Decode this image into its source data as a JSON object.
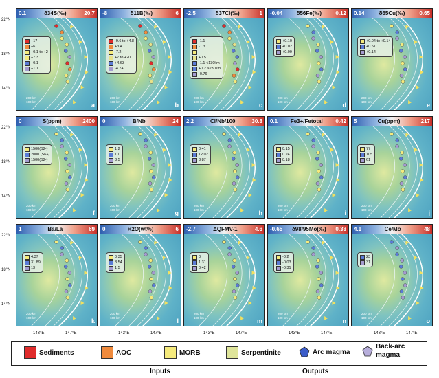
{
  "latitude_labels": [
    "22°N",
    "18°N",
    "14°N"
  ],
  "longitude_labels": [
    "143°E",
    "147°E"
  ],
  "panels": [
    {
      "title": "δ34S(‰)",
      "lo": "0.1",
      "hi": "20.7",
      "letter": "a",
      "legend": [
        "+17",
        "+6",
        "+0.1 to +2",
        "+7.3",
        "+0.1",
        "+1.1"
      ],
      "swatches": [
        "#e02b2b",
        "#f08a3c",
        "#f5ea7c",
        "#f5ea7c",
        "#5b7bd6",
        "#a49bd0"
      ],
      "extra": [
        "Trough",
        "Arc",
        "Back-arc",
        "Trough"
      ]
    },
    {
      "title": "δ11B(‰)",
      "lo": "-8",
      "hi": "6",
      "letter": "b",
      "legend": [
        "-9.6 to +4.8",
        "+3.4",
        "-7.2",
        "+7 to +20",
        "+4.63",
        "-4.74"
      ],
      "swatches": [
        "#e02b2b",
        "#f08a3c",
        "#f5ea7c",
        "#e8e28a",
        "#5b7bd6",
        "#a49bd0"
      ]
    },
    {
      "title": "δ37Cl(‰)",
      "lo": "-2.5",
      "hi": "1",
      "letter": "c",
      "legend": [
        "-1.1",
        "-1.3",
        "-",
        "+0.5",
        "-1.1 <130km",
        "+0.2 >230km",
        "-0.76"
      ],
      "swatches": [
        "#e02b2b",
        "#f08a3c",
        "#f5ea7c",
        "#e8e28a",
        "#5b7bd6",
        "#5b7bd6",
        "#a49bd0"
      ]
    },
    {
      "title": "δ56Fe(‰)",
      "lo": "-0.04",
      "hi": "0.12",
      "letter": "d",
      "legend": [
        "+0.10",
        "+0.02",
        "+0.09"
      ],
      "swatches": [
        "#f5ea7c",
        "#5b7bd6",
        "#a49bd0"
      ]
    },
    {
      "title": "δ65Cu(‰)",
      "lo": "0.14",
      "hi": "0.65",
      "letter": "e",
      "legend": [
        "+0.04 to +0.14",
        "+0.51",
        "+0.14"
      ],
      "swatches": [
        "#f5ea7c",
        "#5b7bd6",
        "#a49bd0"
      ]
    },
    {
      "title": "S(ppm)",
      "lo": "0",
      "hi": "2400",
      "letter": "f",
      "legend": [
        "1500(S2-)",
        "2000 (S6+)",
        "1500(S2-)"
      ],
      "swatches": [
        "#f5ea7c",
        "#5b7bd6",
        "#a49bd0"
      ]
    },
    {
      "title": "B/Nb",
      "lo": "0",
      "hi": "24",
      "letter": "g",
      "legend": [
        "1.2",
        "10",
        "3.5"
      ],
      "swatches": [
        "#f5ea7c",
        "#5b7bd6",
        "#a49bd0"
      ]
    },
    {
      "title": "Cl/Nb/100",
      "lo": "2.2",
      "hi": "30.8",
      "letter": "h",
      "legend": [
        "0.41",
        "12.02",
        "3.87"
      ],
      "swatches": [
        "#f5ea7c",
        "#5b7bd6",
        "#a49bd0"
      ]
    },
    {
      "title": "Fe3+/Fetotal",
      "lo": "0.1",
      "hi": "0.42",
      "letter": "i",
      "legend": [
        "0.15",
        "0.24",
        "0.18"
      ],
      "swatches": [
        "#f5ea7c",
        "#5b7bd6",
        "#a49bd0"
      ]
    },
    {
      "title": "Cu(ppm)",
      "lo": "5",
      "hi": "217",
      "letter": "j",
      "legend": [
        "77",
        "105",
        "61"
      ],
      "swatches": [
        "#f5ea7c",
        "#5b7bd6",
        "#a49bd0"
      ]
    },
    {
      "title": "Ba/La",
      "lo": "1",
      "hi": "69",
      "letter": "k",
      "legend": [
        "4.37",
        "31.89",
        "13"
      ],
      "swatches": [
        "#f5ea7c",
        "#5b7bd6",
        "#a49bd0"
      ]
    },
    {
      "title": "H2O(wt%)",
      "lo": "0",
      "hi": "6",
      "letter": "l",
      "legend": [
        "0.35",
        "3.54",
        "1.5"
      ],
      "swatches": [
        "#f5ea7c",
        "#5b7bd6",
        "#a49bd0"
      ]
    },
    {
      "title": "ΔQFMV-1",
      "lo": "-2.7",
      "hi": "4.6",
      "letter": "m",
      "legend": [
        "0",
        "1.31",
        "0.42"
      ],
      "swatches": [
        "#f5ea7c",
        "#5b7bd6",
        "#a49bd0"
      ]
    },
    {
      "title": "δ98/95Mo(‰)",
      "lo": "-0.65",
      "hi": "0.38",
      "letter": "n",
      "legend": [
        "-0.2",
        "-0.03",
        "-0.31"
      ],
      "swatches": [
        "#f5ea7c",
        "#5b7bd6",
        "#a49bd0"
      ]
    },
    {
      "title": "Ce/Mo",
      "lo": "4.1",
      "hi": "48",
      "letter": "o",
      "legend": [
        "23",
        "31"
      ],
      "swatches": [
        "#5b7bd6",
        "#a49bd0"
      ]
    }
  ],
  "scale_text": [
    "200 km",
    "100 km"
  ],
  "key": {
    "sediments": "Sediments",
    "aoc": "AOC",
    "morb": "MORB",
    "serpentinite": "Serpentinite",
    "arc_magma": "Arc magma",
    "backarc_magma_1": "Back-arc",
    "backarc_magma_2": "magma",
    "inputs": "Inputs",
    "outputs": "Outputs",
    "colors": {
      "sediments": "#e02b2b",
      "aoc": "#f08a3c",
      "morb": "#f5ea7c",
      "serpentinite": "#dfe59a",
      "arc": "#3b5cc9",
      "backarc": "#b7aedb"
    }
  }
}
